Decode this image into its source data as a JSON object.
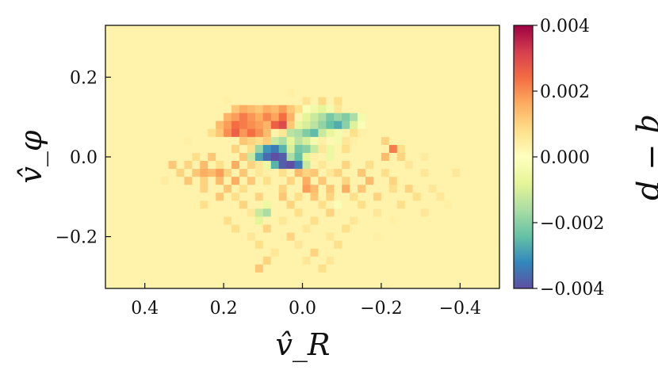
{
  "chart_data": {
    "type": "heatmap",
    "title": "",
    "xlabel": "v̂_R",
    "ylabel": "v̂_φ",
    "x_inverted": true,
    "xlim": [
      0.5,
      -0.5
    ],
    "ylim": [
      -0.33,
      0.33
    ],
    "x_ticks": [
      0.4,
      0.2,
      0.0,
      -0.2,
      -0.4
    ],
    "x_tick_labels": [
      "0.4",
      "0.2",
      "0.0",
      "−0.2",
      "−0.4"
    ],
    "y_ticks": [
      0.2,
      0.0,
      -0.2
    ],
    "y_tick_labels": [
      "0.2",
      "0.0",
      "−0.2"
    ],
    "colorbar": {
      "label": "q − p",
      "colormap": "Spectral_r",
      "range": [
        -0.004,
        0.004
      ],
      "ticks": [
        0.004,
        0.002,
        0.0,
        -0.002,
        -0.004
      ],
      "tick_labels": [
        "0.004",
        "0.002",
        "0.000",
        "−0.002",
        "−0.004"
      ],
      "colors": [
        "#5e4fa2",
        "#3288bd",
        "#66c2a5",
        "#abdda4",
        "#e6f598",
        "#ffffbf",
        "#fee08b",
        "#fdae61",
        "#f46d43",
        "#d53e4f",
        "#9e0142"
      ]
    },
    "bins": {
      "x_start": 0.5,
      "x_step": -0.02,
      "y_start": 0.33,
      "y_step": -0.02,
      "n_x": 50,
      "n_y": 33,
      "background_value": 0.0003
    },
    "cells": [
      [
        0.18,
        0.135,
        0.0012
      ],
      [
        0.16,
        0.135,
        0.0016
      ],
      [
        0.14,
        0.135,
        0.0014
      ],
      [
        0.12,
        0.135,
        0.0012
      ],
      [
        0.1,
        0.135,
        0.0016
      ],
      [
        0.08,
        0.135,
        0.0014
      ],
      [
        0.06,
        0.135,
        0.0018
      ],
      [
        0.04,
        0.135,
        0.0012
      ],
      [
        0.02,
        0.135,
        0.0008
      ],
      [
        0.0,
        0.135,
        -0.0002
      ],
      [
        -0.02,
        0.135,
        -0.0005
      ],
      [
        -0.04,
        0.135,
        -0.0008
      ],
      [
        -0.06,
        0.135,
        -0.0004
      ],
      [
        -0.08,
        0.135,
        0.0006
      ],
      [
        -0.04,
        0.155,
        0.0009
      ],
      [
        0.0,
        0.155,
        0.0007
      ],
      [
        -0.08,
        0.155,
        0.0008
      ],
      [
        0.2,
        0.115,
        0.0015
      ],
      [
        0.18,
        0.115,
        0.0018
      ],
      [
        0.16,
        0.115,
        0.0022
      ],
      [
        0.14,
        0.115,
        0.0019
      ],
      [
        0.12,
        0.115,
        0.0016
      ],
      [
        0.1,
        0.115,
        0.0021
      ],
      [
        0.08,
        0.115,
        0.0017
      ],
      [
        0.06,
        0.115,
        0.0024
      ],
      [
        0.04,
        0.115,
        0.0015
      ],
      [
        0.02,
        0.115,
        0.0003
      ],
      [
        0.0,
        0.115,
        -0.0008
      ],
      [
        -0.02,
        0.115,
        -0.0012
      ],
      [
        -0.04,
        0.115,
        -0.0016
      ],
      [
        -0.06,
        0.115,
        -0.0022
      ],
      [
        -0.08,
        0.115,
        -0.0018
      ],
      [
        -0.1,
        0.115,
        -0.0021
      ],
      [
        -0.12,
        0.115,
        -0.0016
      ],
      [
        -0.14,
        0.115,
        -0.0004
      ],
      [
        0.22,
        0.095,
        0.0014
      ],
      [
        0.2,
        0.095,
        0.0018
      ],
      [
        0.18,
        0.095,
        0.0024
      ],
      [
        0.16,
        0.095,
        0.0022
      ],
      [
        0.14,
        0.095,
        0.002
      ],
      [
        0.12,
        0.095,
        0.0018
      ],
      [
        0.1,
        0.095,
        0.0015
      ],
      [
        0.08,
        0.095,
        0.0026
      ],
      [
        0.06,
        0.095,
        0.003
      ],
      [
        0.04,
        0.095,
        0.0012
      ],
      [
        0.02,
        0.095,
        -0.0007
      ],
      [
        0.0,
        0.095,
        -0.001
      ],
      [
        -0.02,
        0.095,
        -0.0014
      ],
      [
        -0.04,
        0.095,
        -0.0019
      ],
      [
        -0.06,
        0.095,
        -0.0024
      ],
      [
        -0.08,
        0.095,
        -0.0027
      ],
      [
        -0.1,
        0.095,
        -0.002
      ],
      [
        -0.12,
        0.095,
        -0.0009
      ],
      [
        -0.14,
        0.095,
        -0.0002
      ],
      [
        0.24,
        0.075,
        0.0008
      ],
      [
        0.22,
        0.075,
        0.0012
      ],
      [
        0.2,
        0.075,
        0.002
      ],
      [
        0.18,
        0.075,
        0.0026
      ],
      [
        0.16,
        0.075,
        0.0019
      ],
      [
        0.14,
        0.075,
        0.0024
      ],
      [
        0.12,
        0.075,
        0.002
      ],
      [
        0.1,
        0.075,
        0.0014
      ],
      [
        0.06,
        0.075,
        0.0006
      ],
      [
        0.04,
        0.075,
        -0.0014
      ],
      [
        0.02,
        0.075,
        -0.0016
      ],
      [
        0.0,
        0.075,
        -0.0021
      ],
      [
        -0.02,
        0.075,
        -0.0025
      ],
      [
        -0.04,
        0.075,
        -0.0012
      ],
      [
        -0.06,
        0.075,
        -0.0007
      ],
      [
        -0.08,
        0.075,
        -0.0004
      ],
      [
        -0.1,
        0.075,
        0.0003
      ],
      [
        -0.12,
        0.075,
        0.0008
      ],
      [
        -0.14,
        0.075,
        0.0004
      ],
      [
        0.16,
        0.055,
        0.0012
      ],
      [
        0.14,
        0.055,
        0.001
      ],
      [
        0.12,
        0.055,
        0.0008
      ],
      [
        0.1,
        0.055,
        0.0011
      ],
      [
        0.08,
        0.055,
        -0.0012
      ],
      [
        0.06,
        0.055,
        -0.0016
      ],
      [
        0.04,
        0.055,
        -0.0008
      ],
      [
        0.02,
        0.055,
        -0.0014
      ],
      [
        0.0,
        0.055,
        -0.001
      ],
      [
        -0.02,
        0.055,
        -0.0004
      ],
      [
        -0.04,
        0.055,
        0.0004
      ],
      [
        -0.06,
        0.055,
        0.0002
      ],
      [
        -0.08,
        0.055,
        -0.0004
      ],
      [
        -0.1,
        0.055,
        0.0006
      ],
      [
        -0.12,
        0.055,
        0.0004
      ],
      [
        -0.2,
        0.055,
        0.001
      ],
      [
        0.18,
        0.035,
        0.001
      ],
      [
        0.14,
        0.035,
        0.0008
      ],
      [
        0.12,
        0.035,
        -0.0018
      ],
      [
        0.1,
        0.035,
        -0.003
      ],
      [
        0.08,
        0.035,
        -0.0034
      ],
      [
        0.06,
        0.035,
        -0.0026
      ],
      [
        0.04,
        0.035,
        -0.001
      ],
      [
        0.02,
        0.035,
        -0.0022
      ],
      [
        0.0,
        0.035,
        -0.002
      ],
      [
        -0.02,
        0.035,
        -0.0012
      ],
      [
        -0.04,
        0.035,
        0.0006
      ],
      [
        -0.06,
        0.035,
        -0.0006
      ],
      [
        -0.1,
        0.035,
        0.0008
      ],
      [
        -0.22,
        0.035,
        0.0022
      ],
      [
        -0.24,
        0.035,
        0.0008
      ],
      [
        0.28,
        0.015,
        0.0008
      ],
      [
        0.24,
        0.015,
        0.0012
      ],
      [
        0.16,
        0.015,
        0.0012
      ],
      [
        0.14,
        0.015,
        -0.0012
      ],
      [
        0.12,
        0.015,
        -0.0028
      ],
      [
        0.1,
        0.015,
        -0.0036
      ],
      [
        0.08,
        0.015,
        -0.004
      ],
      [
        0.06,
        0.015,
        -0.0038
      ],
      [
        0.04,
        0.015,
        -0.0016
      ],
      [
        0.02,
        0.015,
        -0.0024
      ],
      [
        0.0,
        0.015,
        -0.0008
      ],
      [
        -0.02,
        0.015,
        0.0004
      ],
      [
        -0.06,
        0.015,
        -0.0006
      ],
      [
        -0.2,
        0.015,
        0.0014
      ],
      [
        -0.24,
        0.015,
        0.001
      ],
      [
        0.34,
        -0.005,
        0.0012
      ],
      [
        0.3,
        -0.005,
        0.001
      ],
      [
        0.26,
        -0.005,
        0.0014
      ],
      [
        0.22,
        -0.005,
        0.0008
      ],
      [
        0.18,
        -0.005,
        0.0016
      ],
      [
        0.14,
        -0.005,
        0.001
      ],
      [
        0.12,
        -0.005,
        0.0006
      ],
      [
        0.1,
        -0.005,
        -0.0006
      ],
      [
        0.08,
        -0.005,
        -0.0026
      ],
      [
        0.06,
        -0.005,
        -0.0038
      ],
      [
        0.04,
        -0.005,
        -0.0042
      ],
      [
        0.02,
        -0.005,
        -0.0034
      ],
      [
        0.0,
        -0.005,
        -0.0012
      ],
      [
        -0.04,
        -0.005,
        0.0006
      ],
      [
        -0.1,
        -0.005,
        0.001
      ],
      [
        -0.16,
        -0.005,
        0.0008
      ],
      [
        -0.26,
        -0.005,
        0.0006
      ],
      [
        0.32,
        -0.025,
        0.001
      ],
      [
        0.28,
        -0.025,
        0.0012
      ],
      [
        0.26,
        -0.025,
        0.0016
      ],
      [
        0.24,
        -0.025,
        0.0014
      ],
      [
        0.22,
        -0.025,
        0.0018
      ],
      [
        0.2,
        -0.025,
        0.001
      ],
      [
        0.16,
        -0.025,
        0.0012
      ],
      [
        0.12,
        -0.025,
        0.0006
      ],
      [
        0.1,
        -0.025,
        0.0004
      ],
      [
        0.06,
        -0.025,
        0.0008
      ],
      [
        0.02,
        -0.025,
        0.0014
      ],
      [
        0.0,
        -0.025,
        0.001
      ],
      [
        -0.02,
        -0.025,
        0.0012
      ],
      [
        -0.06,
        -0.025,
        0.0006
      ],
      [
        -0.08,
        -0.025,
        0.001
      ],
      [
        -0.14,
        -0.025,
        0.0012
      ],
      [
        -0.2,
        -0.025,
        0.0008
      ],
      [
        -0.3,
        -0.025,
        0.0006
      ],
      [
        -0.38,
        -0.025,
        0.0006
      ],
      [
        0.3,
        -0.045,
        0.0012
      ],
      [
        0.26,
        -0.045,
        0.001
      ],
      [
        0.22,
        -0.045,
        0.0014
      ],
      [
        0.18,
        -0.045,
        0.0016
      ],
      [
        0.14,
        -0.045,
        0.0012
      ],
      [
        0.1,
        -0.045,
        0.0008
      ],
      [
        0.04,
        -0.045,
        0.001
      ],
      [
        0.0,
        -0.045,
        0.0016
      ],
      [
        -0.04,
        -0.045,
        0.0012
      ],
      [
        -0.1,
        -0.045,
        0.001
      ],
      [
        -0.16,
        -0.045,
        0.0014
      ],
      [
        -0.22,
        -0.045,
        0.001
      ],
      [
        0.26,
        -0.065,
        0.001
      ],
      [
        0.2,
        -0.065,
        0.0012
      ],
      [
        0.16,
        -0.065,
        0.0008
      ],
      [
        0.06,
        -0.065,
        0.001
      ],
      [
        0.0,
        -0.065,
        0.0018
      ],
      [
        -0.02,
        -0.065,
        0.0014
      ],
      [
        -0.06,
        -0.065,
        0.0012
      ],
      [
        -0.1,
        -0.065,
        0.0016
      ],
      [
        -0.14,
        -0.065,
        0.0012
      ],
      [
        -0.22,
        -0.065,
        0.0008
      ],
      [
        -0.26,
        -0.065,
        0.001
      ],
      [
        -0.32,
        -0.065,
        0.0006
      ],
      [
        0.22,
        -0.085,
        0.0012
      ],
      [
        0.18,
        -0.085,
        0.0008
      ],
      [
        0.12,
        -0.085,
        0.001
      ],
      [
        0.06,
        -0.085,
        0.0012
      ],
      [
        0.02,
        -0.085,
        0.0008
      ],
      [
        -0.02,
        -0.085,
        0.0012
      ],
      [
        -0.06,
        -0.085,
        0.001
      ],
      [
        -0.12,
        -0.085,
        0.0008
      ],
      [
        -0.18,
        -0.085,
        0.001
      ],
      [
        -0.28,
        -0.085,
        0.0008
      ],
      [
        -0.34,
        -0.085,
        0.0006
      ],
      [
        0.26,
        -0.105,
        0.0008
      ],
      [
        0.16,
        -0.105,
        0.001
      ],
      [
        0.1,
        -0.105,
        -0.0006
      ],
      [
        0.04,
        -0.105,
        0.001
      ],
      [
        -0.04,
        -0.105,
        0.0008
      ],
      [
        -0.08,
        -0.105,
        -0.0002
      ],
      [
        -0.14,
        -0.105,
        0.0008
      ],
      [
        -0.24,
        -0.105,
        0.0008
      ],
      [
        0.14,
        -0.125,
        0.0006
      ],
      [
        0.12,
        -0.125,
        -0.0012
      ],
      [
        0.1,
        -0.125,
        -0.0016
      ],
      [
        0.02,
        -0.125,
        0.0008
      ],
      [
        -0.06,
        -0.125,
        0.001
      ],
      [
        -0.18,
        -0.125,
        0.0006
      ],
      [
        -0.3,
        -0.125,
        0.0006
      ],
      [
        0.2,
        -0.145,
        0.0008
      ],
      [
        0.12,
        -0.145,
        -0.0008
      ],
      [
        0.06,
        -0.145,
        0.0006
      ],
      [
        -0.02,
        -0.145,
        0.0008
      ],
      [
        -0.12,
        -0.145,
        0.0006
      ],
      [
        -0.22,
        -0.145,
        0.0004
      ],
      [
        0.18,
        -0.165,
        0.0008
      ],
      [
        0.1,
        -0.165,
        0.001
      ],
      [
        0.0,
        -0.165,
        0.0006
      ],
      [
        -0.1,
        -0.165,
        0.0008
      ],
      [
        0.14,
        -0.185,
        0.0006
      ],
      [
        0.04,
        -0.185,
        0.001
      ],
      [
        -0.06,
        -0.185,
        0.0006
      ],
      [
        -0.18,
        -0.185,
        0.0004
      ],
      [
        0.12,
        -0.205,
        0.0008
      ],
      [
        0.02,
        -0.205,
        0.0006
      ],
      [
        -0.08,
        -0.205,
        0.0008
      ],
      [
        0.08,
        -0.225,
        0.0006
      ],
      [
        -0.02,
        -0.225,
        0.001
      ],
      [
        0.1,
        -0.245,
        0.001
      ],
      [
        0.0,
        -0.245,
        0.0006
      ],
      [
        -0.06,
        -0.245,
        0.0006
      ],
      [
        0.12,
        -0.265,
        0.0012
      ],
      [
        -0.04,
        -0.265,
        0.0008
      ],
      [
        0.3,
        0.055,
        0.0004
      ],
      [
        -0.3,
        0.015,
        0.0005
      ],
      [
        0.36,
        -0.045,
        0.0005
      ],
      [
        -0.36,
        -0.105,
        0.0004
      ],
      [
        0.2,
        0.155,
        0.0004
      ],
      [
        -0.16,
        0.155,
        0.0003
      ],
      [
        0.04,
        0.175,
        0.0004
      ],
      [
        -0.02,
        0.195,
        0.0003
      ]
    ]
  }
}
